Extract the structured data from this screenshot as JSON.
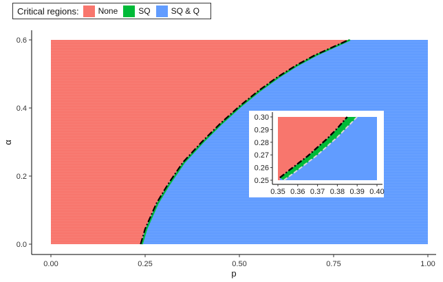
{
  "legend": {
    "title": "Critical regions:",
    "items": [
      {
        "label": "None",
        "color": "#F8766D"
      },
      {
        "label": "SQ",
        "color": "#00BA38"
      },
      {
        "label": "SQ & Q",
        "color": "#619CFF"
      }
    ]
  },
  "chart_data": [
    {
      "type": "area",
      "xlabel": "p",
      "ylabel": "α",
      "xlim": [
        0,
        1
      ],
      "ylim": [
        0,
        0.6
      ],
      "xticks": [
        "0.00",
        "0.25",
        "0.50",
        "0.75",
        "1.00"
      ],
      "yticks": [
        "0.0",
        "0.2",
        "0.4",
        "0.6"
      ],
      "boundary_curve": {
        "style": "dash-dot",
        "x": [
          0.238,
          0.25,
          0.28,
          0.31,
          0.35,
          0.4,
          0.45,
          0.5,
          0.55,
          0.6,
          0.65,
          0.7,
          0.75,
          0.79
        ],
        "y": [
          0.0,
          0.045,
          0.12,
          0.175,
          0.24,
          0.3,
          0.355,
          0.405,
          0.45,
          0.49,
          0.525,
          0.555,
          0.58,
          0.6
        ]
      },
      "regions": [
        "None",
        "SQ",
        "SQ & Q"
      ]
    },
    {
      "type": "area",
      "inset": true,
      "xlim": [
        0.35,
        0.4
      ],
      "ylim": [
        0.25,
        0.3
      ],
      "xticks": [
        "0.35",
        "0.36",
        "0.37",
        "0.38",
        "0.39",
        "0.40"
      ],
      "yticks": [
        "0.25",
        "0.26",
        "0.27",
        "0.28",
        "0.29",
        "0.30"
      ],
      "upper_curve": {
        "style": "dash-dot",
        "x": [
          0.351,
          0.355,
          0.36,
          0.365,
          0.37,
          0.375,
          0.38,
          0.385
        ],
        "y": [
          0.252,
          0.257,
          0.263,
          0.269,
          0.276,
          0.283,
          0.291,
          0.3
        ]
      },
      "lower_curve": {
        "style": "dashed",
        "x": [
          0.353,
          0.36,
          0.365,
          0.37,
          0.375,
          0.38,
          0.385,
          0.39
        ],
        "y": [
          0.25,
          0.258,
          0.264,
          0.27,
          0.277,
          0.284,
          0.292,
          0.3
        ]
      }
    }
  ]
}
